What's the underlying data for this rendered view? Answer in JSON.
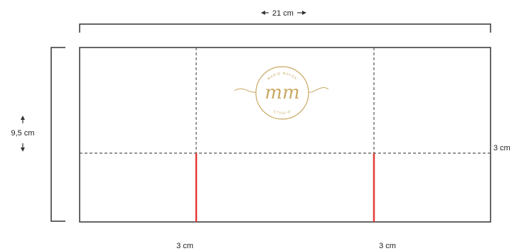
{
  "dimensions": {
    "width_label": "21 cm",
    "height_label": "9,5 cm",
    "flap_right_label": "3 cm",
    "bottom_left_label": "3 cm",
    "bottom_right_label": "3 cm"
  },
  "logo": {
    "monogram": "mm",
    "ring_top_text": "MARIE MAYER",
    "ring_bottom_text": "STUDIO"
  },
  "colors": {
    "outline": "#333333",
    "fold_line": "#555555",
    "cut_line": "#e53935",
    "logo_gold": "#c9a862"
  }
}
